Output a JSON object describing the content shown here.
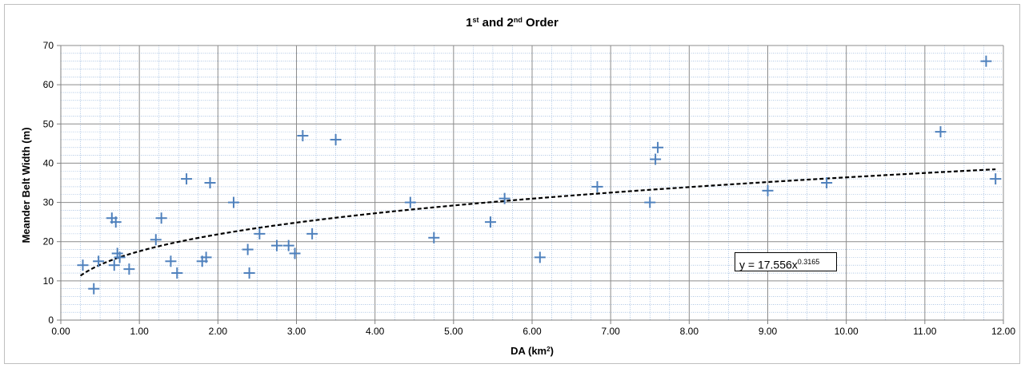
{
  "chart_data": {
    "type": "scatter",
    "title": "1st and 2nd Order",
    "title_parts": [
      {
        "text": "1",
        "sup": false
      },
      {
        "text": "st",
        "sup": true
      },
      {
        "text": " and 2",
        "sup": false
      },
      {
        "text": "nd",
        "sup": true
      },
      {
        "text": " Order",
        "sup": false
      }
    ],
    "xlabel": "DA (km2)",
    "xlabel_parts": [
      {
        "text": "DA (km",
        "sup": false
      },
      {
        "text": "2",
        "sup": true
      },
      {
        "text": ")",
        "sup": false
      }
    ],
    "ylabel": "Meander Belt Width (m)",
    "xlim": [
      0,
      12
    ],
    "ylim": [
      0,
      70
    ],
    "x_ticks": [
      "0.00",
      "1.00",
      "2.00",
      "3.00",
      "4.00",
      "5.00",
      "6.00",
      "7.00",
      "8.00",
      "9.00",
      "10.00",
      "11.00",
      "12.00"
    ],
    "y_ticks": [
      "0",
      "10",
      "20",
      "30",
      "40",
      "50",
      "60",
      "70"
    ],
    "grid": true,
    "colors": {
      "marker": "#4f81bd",
      "major_grid": "#8c8c8c",
      "minor_grid": "#7da3d3",
      "trendline": "#000000"
    },
    "series": [
      {
        "marker": "plus",
        "points": [
          {
            "x": 0.28,
            "y": 14
          },
          {
            "x": 0.42,
            "y": 8
          },
          {
            "x": 0.48,
            "y": 15
          },
          {
            "x": 0.65,
            "y": 26
          },
          {
            "x": 0.68,
            "y": 14
          },
          {
            "x": 0.7,
            "y": 25
          },
          {
            "x": 0.72,
            "y": 17
          },
          {
            "x": 0.75,
            "y": 16
          },
          {
            "x": 0.87,
            "y": 13
          },
          {
            "x": 1.21,
            "y": 20.5
          },
          {
            "x": 1.28,
            "y": 26
          },
          {
            "x": 1.4,
            "y": 15
          },
          {
            "x": 1.48,
            "y": 12
          },
          {
            "x": 1.6,
            "y": 36
          },
          {
            "x": 1.8,
            "y": 15
          },
          {
            "x": 1.85,
            "y": 16
          },
          {
            "x": 1.9,
            "y": 35
          },
          {
            "x": 2.2,
            "y": 30
          },
          {
            "x": 2.38,
            "y": 18
          },
          {
            "x": 2.4,
            "y": 12
          },
          {
            "x": 2.53,
            "y": 22
          },
          {
            "x": 2.75,
            "y": 19
          },
          {
            "x": 2.9,
            "y": 19
          },
          {
            "x": 2.98,
            "y": 17
          },
          {
            "x": 3.08,
            "y": 47
          },
          {
            "x": 3.2,
            "y": 22
          },
          {
            "x": 3.5,
            "y": 46
          },
          {
            "x": 4.45,
            "y": 30
          },
          {
            "x": 4.75,
            "y": 21
          },
          {
            "x": 5.47,
            "y": 25
          },
          {
            "x": 5.65,
            "y": 31
          },
          {
            "x": 6.1,
            "y": 16
          },
          {
            "x": 6.83,
            "y": 34
          },
          {
            "x": 7.5,
            "y": 30
          },
          {
            "x": 7.57,
            "y": 41
          },
          {
            "x": 7.6,
            "y": 44
          },
          {
            "x": 9.0,
            "y": 33
          },
          {
            "x": 9.75,
            "y": 35
          },
          {
            "x": 11.2,
            "y": 48
          },
          {
            "x": 11.78,
            "y": 66
          },
          {
            "x": 11.9,
            "y": 36
          }
        ]
      }
    ],
    "trendline": {
      "type": "power",
      "coefficient": 17.556,
      "exponent": 0.3165,
      "x_range": [
        0.25,
        11.9
      ],
      "equation_prefix": "y = 17.556x",
      "equation_exponent": "0.3165"
    }
  }
}
